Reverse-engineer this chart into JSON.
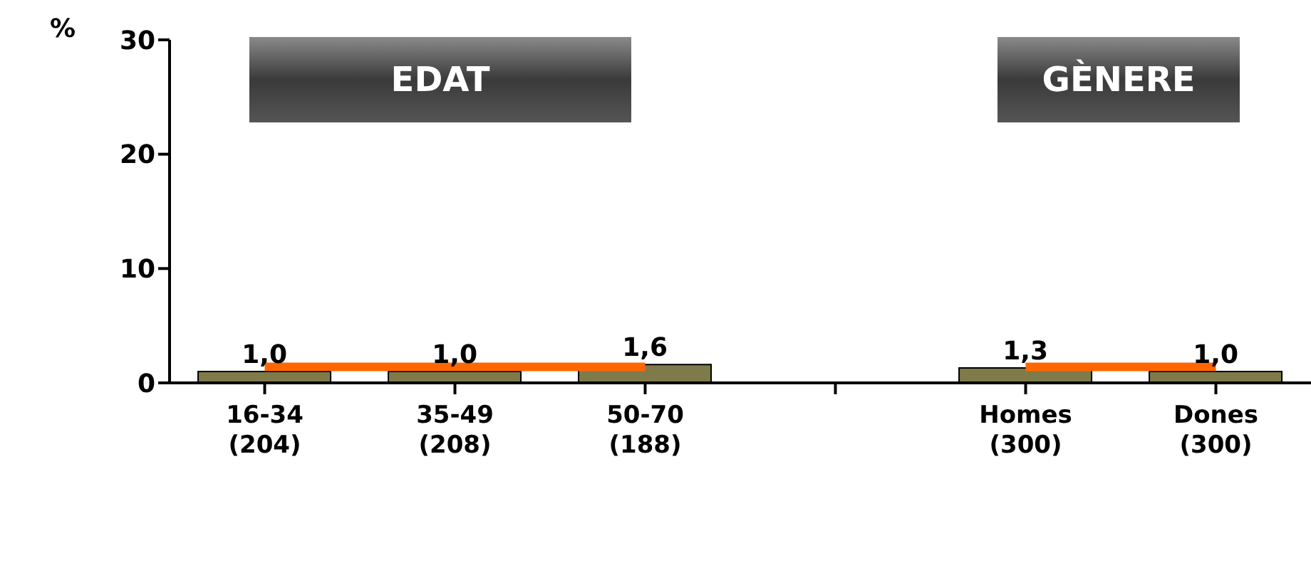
{
  "chart_data": {
    "type": "bar",
    "ylabel": "%",
    "categories": [
      "16-34\n(204)",
      "35-49\n(208)",
      "50-70\n(188)",
      null,
      "Homes\n(300)",
      "Dones\n(300)"
    ],
    "series": [
      {
        "color": "#7f7a4a",
        "values": [
          1.0,
          1.0,
          1.6,
          null,
          1.3,
          1.0
        ],
        "value_labels": [
          "1,0",
          "1,0",
          "1,6",
          null,
          "1,3",
          "1,0"
        ]
      },
      {
        "type": "line",
        "color": "#ff6600",
        "values": [
          1.4,
          1.4,
          1.4,
          null,
          1.4,
          1.4
        ],
        "marker": "none"
      }
    ],
    "annotations": [
      "EDAT",
      "GÈNERE"
    ],
    "ylim": [
      0,
      30
    ],
    "yticks": [
      0,
      10,
      20,
      30
    ],
    "grid": false,
    "legend": false
  }
}
